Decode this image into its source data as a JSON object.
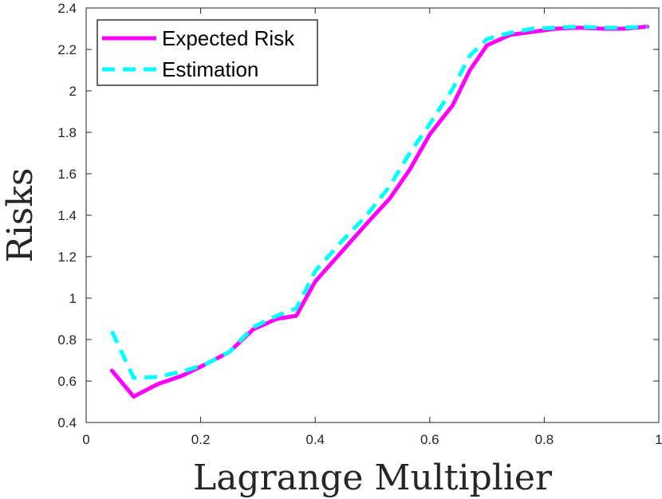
{
  "chart_data": {
    "type": "line",
    "title": "",
    "xlabel": "Lagrange Multiplier",
    "ylabel": "Risks",
    "xlim": [
      0,
      1
    ],
    "ylim": [
      0.4,
      2.4
    ],
    "xticks": [
      0,
      0.2,
      0.4,
      0.6,
      0.8,
      1
    ],
    "xtick_labels": [
      "0",
      "0.2",
      "0.4",
      "0.6",
      "0.8",
      "1"
    ],
    "yticks": [
      0.4,
      0.6,
      0.8,
      1,
      1.2,
      1.4,
      1.6,
      1.8,
      2,
      2.2,
      2.4
    ],
    "ytick_labels": [
      "0.4",
      "0.6",
      "0.8",
      "1",
      "1.2",
      "1.4",
      "1.6",
      "1.8",
      "2",
      "2.2",
      "2.4"
    ],
    "grid": false,
    "legend_position": "top-left",
    "series": [
      {
        "name": "Expected Risk",
        "color": "#ff00ff",
        "style": "solid",
        "x": [
          0.045,
          0.083,
          0.125,
          0.167,
          0.208,
          0.25,
          0.292,
          0.333,
          0.367,
          0.4,
          0.445,
          0.49,
          0.53,
          0.565,
          0.6,
          0.64,
          0.67,
          0.7,
          0.74,
          0.78,
          0.82,
          0.86,
          0.9,
          0.94,
          0.98
        ],
        "y": [
          0.65,
          0.525,
          0.585,
          0.625,
          0.68,
          0.74,
          0.85,
          0.9,
          0.915,
          1.08,
          1.22,
          1.36,
          1.48,
          1.62,
          1.79,
          1.93,
          2.1,
          2.22,
          2.27,
          2.285,
          2.3,
          2.305,
          2.3,
          2.3,
          2.31
        ]
      },
      {
        "name": "Estimation",
        "color": "#00ffff",
        "style": "dashed",
        "x": [
          0.045,
          0.083,
          0.125,
          0.167,
          0.208,
          0.25,
          0.292,
          0.333,
          0.367,
          0.4,
          0.445,
          0.49,
          0.53,
          0.565,
          0.6,
          0.64,
          0.67,
          0.7,
          0.74,
          0.78,
          0.82,
          0.86,
          0.9,
          0.94,
          0.98
        ],
        "y": [
          0.84,
          0.615,
          0.62,
          0.645,
          0.68,
          0.74,
          0.86,
          0.915,
          0.95,
          1.13,
          1.27,
          1.4,
          1.54,
          1.7,
          1.84,
          2.01,
          2.17,
          2.25,
          2.28,
          2.3,
          2.305,
          2.31,
          2.305,
          2.305,
          2.31
        ]
      }
    ]
  }
}
